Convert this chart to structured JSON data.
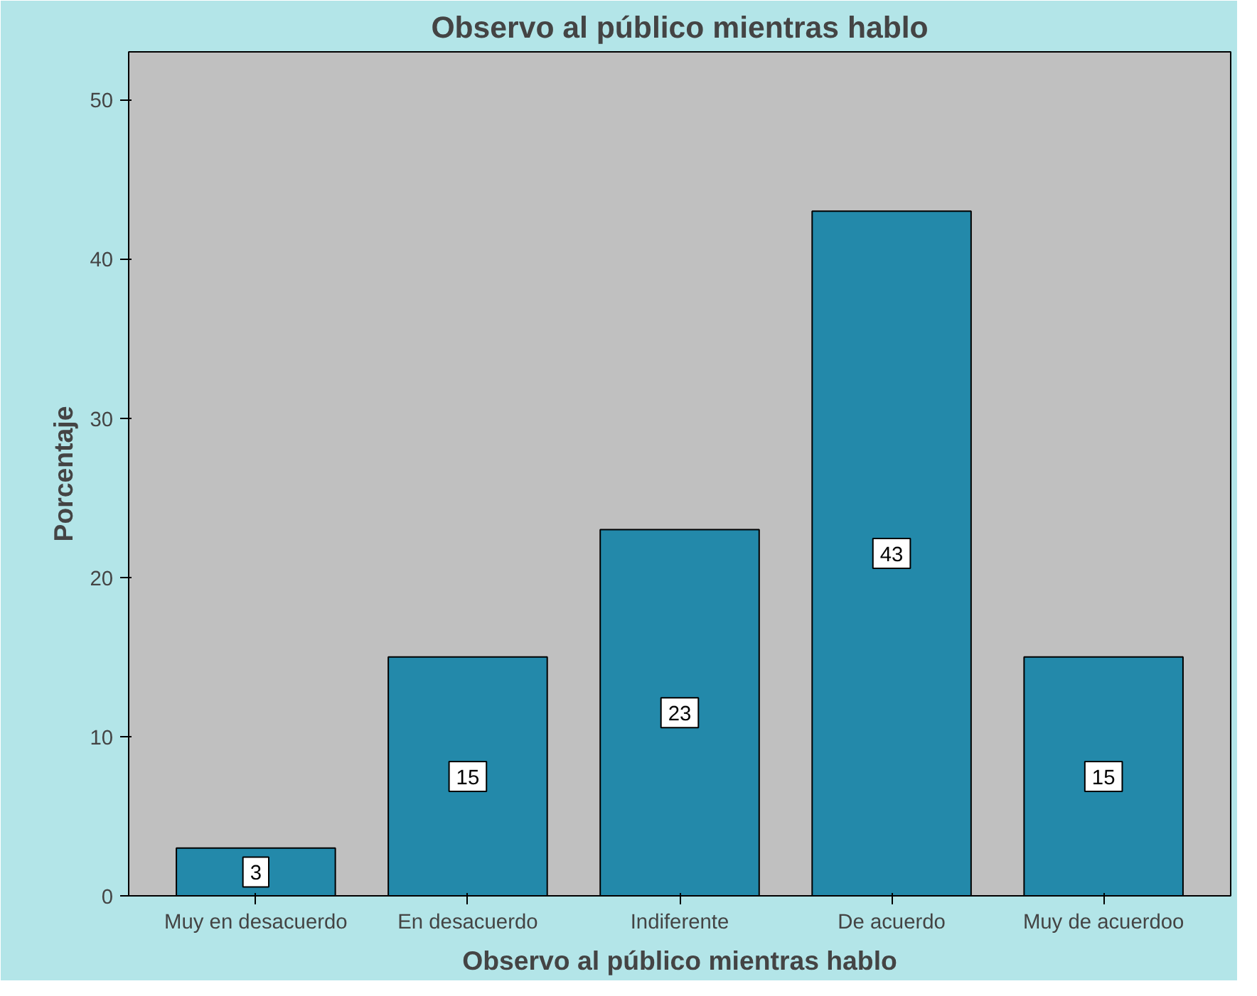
{
  "chart_data": {
    "type": "bar",
    "title": "Observo al público mientras hablo",
    "xlabel": "Observo al público mientras hablo",
    "ylabel": "Porcentaje",
    "categories": [
      "Muy en desacuerdo",
      "En desacuerdo",
      "Indiferente",
      "De acuerdo",
      "Muy de acuerdoo"
    ],
    "values": [
      3,
      15,
      23,
      43,
      15
    ],
    "color": "#2389aa",
    "ylim": [
      0,
      53
    ],
    "yticks": [
      0,
      10,
      20,
      30,
      40,
      50
    ],
    "grid": false,
    "data_labels": true
  }
}
